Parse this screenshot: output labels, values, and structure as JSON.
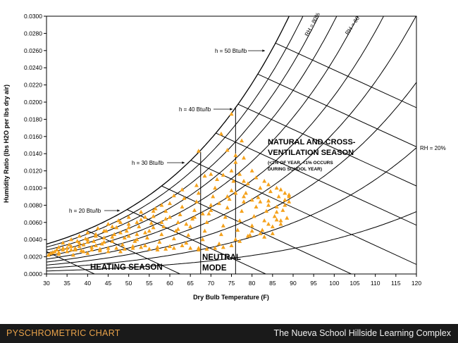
{
  "footer": {
    "left_title": "PYSCHROMETRIC CHART",
    "right_title": "The Nueva School Hillside Learning Complex"
  },
  "colors": {
    "marker": "#f5a21c",
    "curves": "#000000",
    "footer_bg": "#1a1a1a",
    "footer_left_text": "#e8a24a",
    "footer_right_text": "#f2f2f2"
  },
  "chart_data": {
    "type": "scatter",
    "title": "",
    "xlabel": "Dry Bulb Temperature (F)",
    "ylabel": "Humidity Ratio (lbs H2O per lbs dry air)",
    "xlim": [
      30,
      120
    ],
    "ylim": [
      0,
      0.03
    ],
    "x_ticks": [
      "30",
      "35",
      "40",
      "45",
      "50",
      "55",
      "60",
      "65",
      "70",
      "75",
      "80",
      "85",
      "90",
      "95",
      "100",
      "105",
      "110",
      "115",
      "120"
    ],
    "y_ticks": [
      "0.0000",
      "0.0020",
      "0.0040",
      "0.0060",
      "0.0080",
      "0.0100",
      "0.0120",
      "0.0140",
      "0.0160",
      "0.0180",
      "0.0200",
      "0.0220",
      "0.0240",
      "0.0260",
      "0.0280",
      "0.0300"
    ],
    "grid": false,
    "rh_curves": [
      100,
      90,
      80,
      70,
      60,
      50,
      40,
      30,
      20,
      10
    ],
    "enthalpy_lines": [
      10,
      15,
      20,
      25,
      30,
      35,
      40,
      45,
      50
    ],
    "annotations": {
      "h50": "h = 50 Btu/lb",
      "h40": "h = 40 Btu/lb",
      "h30": "h = 30 Btu/lb",
      "h20": "h = 20 Btu/lb",
      "rh80": "RH = 80%",
      "rh60": "RH = 60",
      "rh20": "RH = 20%",
      "natural_line1": "NATURAL AND CROSS-",
      "natural_line2": "VENTILATION SEASON",
      "natural_note1": "(<2% OF YEAR, <1% OCCURS",
      "natural_note2": "DURING SCHOOL YEAR)",
      "heating": "HEATING SEASON",
      "neutral1": "NEUTRAL",
      "neutral2": "MODE"
    },
    "zone_boundaries_x": [
      67.5,
      76
    ],
    "series": [
      {
        "points": [
          [
            31.5,
            0.0025
          ],
          [
            32.5,
            0.0028
          ],
          [
            33,
            0.0023
          ],
          [
            34,
            0.003
          ],
          [
            34,
            0.0036
          ],
          [
            35,
            0.0026
          ],
          [
            35.5,
            0.0034
          ],
          [
            36,
            0.004
          ],
          [
            36.5,
            0.0022
          ],
          [
            37,
            0.003
          ],
          [
            37.5,
            0.0038
          ],
          [
            38,
            0.0044
          ],
          [
            38.5,
            0.0027
          ],
          [
            39,
            0.0034
          ],
          [
            39.5,
            0.0041
          ],
          [
            40,
            0.0048
          ],
          [
            40,
            0.0024
          ],
          [
            41,
            0.0031
          ],
          [
            41.5,
            0.0038
          ],
          [
            42,
            0.0046
          ],
          [
            42.5,
            0.0053
          ],
          [
            43,
            0.0027
          ],
          [
            43.5,
            0.0035
          ],
          [
            44,
            0.0042
          ],
          [
            44.5,
            0.005
          ],
          [
            45,
            0.0058
          ],
          [
            45,
            0.003
          ],
          [
            46,
            0.0038
          ],
          [
            46.5,
            0.0046
          ],
          [
            47,
            0.0054
          ],
          [
            47.5,
            0.0062
          ],
          [
            48,
            0.0026
          ],
          [
            48.5,
            0.0034
          ],
          [
            49,
            0.0042
          ],
          [
            49.5,
            0.005
          ],
          [
            50,
            0.0058
          ],
          [
            50,
            0.0066
          ],
          [
            51,
            0.003
          ],
          [
            51.5,
            0.0038
          ],
          [
            52,
            0.0046
          ],
          [
            52.5,
            0.0055
          ],
          [
            53,
            0.0063
          ],
          [
            53,
            0.0072
          ],
          [
            54,
            0.0033
          ],
          [
            54.5,
            0.0042
          ],
          [
            55,
            0.005
          ],
          [
            55.5,
            0.0059
          ],
          [
            56,
            0.0067
          ],
          [
            56.5,
            0.0076
          ],
          [
            57,
            0.0028
          ],
          [
            57.5,
            0.0037
          ],
          [
            58,
            0.0046
          ],
          [
            58.5,
            0.0055
          ],
          [
            59,
            0.0064
          ],
          [
            59,
            0.0073
          ],
          [
            60,
            0.0082
          ],
          [
            60,
            0.0032
          ],
          [
            61,
            0.0041
          ],
          [
            61.5,
            0.005
          ],
          [
            62,
            0.006
          ],
          [
            62.5,
            0.0069
          ],
          [
            63,
            0.0078
          ],
          [
            63.5,
            0.0088
          ],
          [
            64,
            0.0036
          ],
          [
            64.5,
            0.0045
          ],
          [
            65,
            0.0055
          ],
          [
            65.5,
            0.0064
          ],
          [
            66,
            0.0074
          ],
          [
            66.5,
            0.0084
          ],
          [
            67,
            0.0094
          ],
          [
            67,
            0.003
          ],
          [
            68,
            0.004
          ],
          [
            68.5,
            0.005
          ],
          [
            69,
            0.006
          ],
          [
            69.5,
            0.007
          ],
          [
            70,
            0.008
          ],
          [
            70.5,
            0.009
          ],
          [
            71,
            0.01
          ],
          [
            71.5,
            0.011
          ],
          [
            72,
            0.0035
          ],
          [
            72.5,
            0.0046
          ],
          [
            73,
            0.0056
          ],
          [
            73.5,
            0.0066
          ],
          [
            74,
            0.0077
          ],
          [
            74.5,
            0.0087
          ],
          [
            75,
            0.0097
          ],
          [
            75.5,
            0.0108
          ],
          [
            76,
            0.004
          ],
          [
            76.5,
            0.0051
          ],
          [
            77,
            0.0062
          ],
          [
            77.5,
            0.0073
          ],
          [
            78,
            0.0084
          ],
          [
            78.5,
            0.0094
          ],
          [
            79,
            0.0105
          ],
          [
            79.5,
            0.0045
          ],
          [
            80,
            0.0056
          ],
          [
            80.5,
            0.0067
          ],
          [
            81,
            0.0078
          ],
          [
            81.5,
            0.0089
          ],
          [
            82,
            0.01
          ],
          [
            82.5,
            0.0051
          ],
          [
            83,
            0.0062
          ],
          [
            83.5,
            0.0073
          ],
          [
            84,
            0.0085
          ],
          [
            84.5,
            0.0096
          ],
          [
            85,
            0.0055
          ],
          [
            85.5,
            0.0067
          ],
          [
            86,
            0.0078
          ],
          [
            86.5,
            0.009
          ],
          [
            87,
            0.0062
          ],
          [
            87.5,
            0.0074
          ],
          [
            88,
            0.0086
          ],
          [
            88.5,
            0.0065
          ],
          [
            89,
            0.0084
          ],
          [
            89,
            0.0092
          ],
          [
            33,
            0.0031
          ],
          [
            36,
            0.0032
          ],
          [
            38,
            0.0036
          ],
          [
            40,
            0.004
          ],
          [
            42,
            0.0033
          ],
          [
            44,
            0.0037
          ],
          [
            46,
            0.0043
          ],
          [
            48,
            0.0048
          ],
          [
            50,
            0.0044
          ],
          [
            52,
            0.004
          ],
          [
            54,
            0.0048
          ],
          [
            56,
            0.0054
          ],
          [
            58,
            0.006
          ],
          [
            60,
            0.0066
          ],
          [
            62,
            0.0052
          ],
          [
            64,
            0.0058
          ],
          [
            66,
            0.0066
          ],
          [
            68,
            0.007
          ],
          [
            70,
            0.0074
          ],
          [
            72,
            0.0082
          ],
          [
            74,
            0.009
          ],
          [
            76,
            0.0094
          ],
          [
            78,
            0.009
          ],
          [
            80,
            0.0086
          ],
          [
            82,
            0.0084
          ],
          [
            84,
            0.008
          ],
          [
            86,
            0.0072
          ],
          [
            88,
            0.008
          ],
          [
            73,
            0.0115
          ],
          [
            75,
            0.012
          ],
          [
            76,
            0.013
          ],
          [
            77,
            0.0116
          ],
          [
            78,
            0.0108
          ],
          [
            70,
            0.0116
          ],
          [
            66.5,
            0.0103
          ],
          [
            68.5,
            0.0114
          ],
          [
            63,
            0.0098
          ],
          [
            61,
            0.0091
          ],
          [
            58,
            0.008
          ],
          [
            56,
            0.0073
          ],
          [
            54,
            0.0066
          ],
          [
            52,
            0.006
          ],
          [
            50,
            0.0054
          ],
          [
            48,
            0.006
          ],
          [
            46,
            0.0055
          ],
          [
            44,
            0.005
          ],
          [
            42,
            0.0044
          ],
          [
            40,
            0.0037
          ],
          [
            38,
            0.0032
          ],
          [
            36,
            0.0028
          ],
          [
            34,
            0.0028
          ],
          [
            32,
            0.0026
          ],
          [
            67,
            0.0143
          ],
          [
            72.5,
            0.0163
          ],
          [
            75,
            0.0186
          ],
          [
            77.5,
            0.0155
          ],
          [
            74,
            0.0144
          ],
          [
            76,
            0.0138
          ],
          [
            78,
            0.0135
          ],
          [
            80,
            0.012
          ],
          [
            81,
            0.0112
          ],
          [
            83,
            0.0108
          ],
          [
            84,
            0.0104
          ],
          [
            86,
            0.01
          ],
          [
            87,
            0.0098
          ],
          [
            88,
            0.0094
          ],
          [
            89,
            0.009
          ],
          [
            80,
            0.005
          ],
          [
            82,
            0.0047
          ],
          [
            84,
            0.0058
          ],
          [
            86,
            0.0063
          ],
          [
            87,
            0.0058
          ],
          [
            85,
            0.0047
          ],
          [
            83,
            0.0043
          ],
          [
            79,
            0.0044
          ],
          [
            77,
            0.0038
          ],
          [
            75,
            0.0033
          ],
          [
            73,
            0.0031
          ],
          [
            71,
            0.003
          ],
          [
            69,
            0.0029
          ],
          [
            67,
            0.0028
          ],
          [
            65,
            0.003
          ],
          [
            63,
            0.0033
          ],
          [
            61,
            0.003
          ],
          [
            59,
            0.0029
          ],
          [
            57,
            0.0031
          ],
          [
            55,
            0.0029
          ],
          [
            53,
            0.0031
          ],
          [
            51,
            0.0032
          ],
          [
            49,
            0.0029
          ],
          [
            47,
            0.003
          ],
          [
            45,
            0.0026
          ],
          [
            43,
            0.0029
          ],
          [
            41,
            0.0028
          ],
          [
            39,
            0.0026
          ],
          [
            37,
            0.0028
          ],
          [
            35,
            0.003
          ],
          [
            33,
            0.0025
          ],
          [
            31,
            0.0024
          ],
          [
            30.5,
            0.0022
          ]
        ]
      }
    ]
  }
}
